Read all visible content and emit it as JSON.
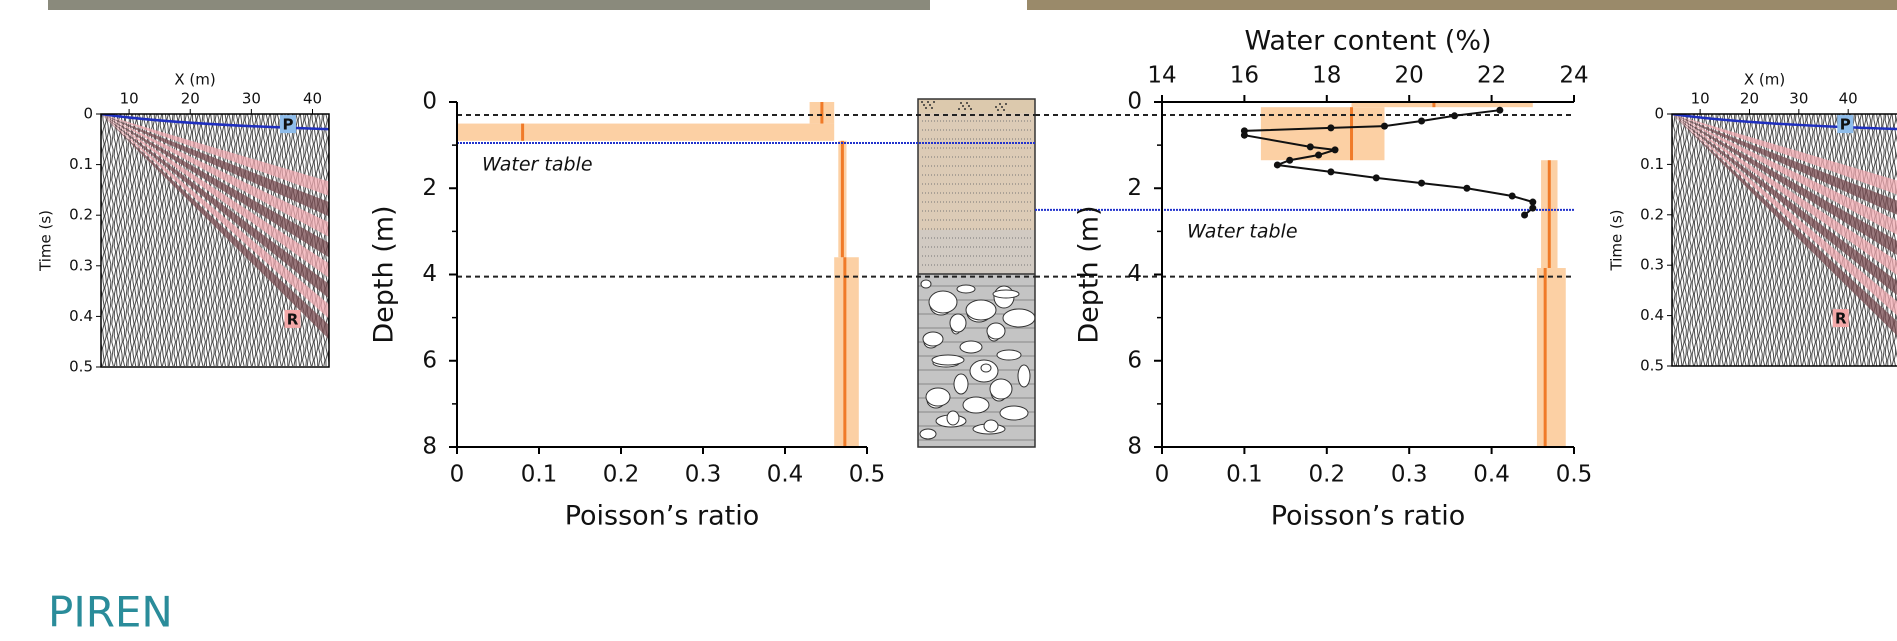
{
  "chart_data": [
    {
      "type": "seismogram",
      "xlabel": "X (m)",
      "ylabel": "Time (s)",
      "xlim": [
        5.4,
        42.7
      ],
      "xticks": [
        10,
        20,
        30,
        40
      ],
      "ylim": [
        0,
        0.5
      ],
      "yticks": [
        0,
        0.1,
        0.2,
        0.3,
        0.4,
        0.5
      ],
      "annotations": [
        "P",
        "R"
      ]
    },
    {
      "type": "profile",
      "xlabel": "Poisson’s ratio",
      "ylabel": "Depth (m)",
      "xlim": [
        0,
        0.5
      ],
      "xticks": [
        0,
        0.1,
        0.2,
        0.3,
        0.4,
        0.5
      ],
      "ylim": [
        0,
        8
      ],
      "yticks": [
        0,
        2,
        4,
        6,
        8
      ],
      "yminorticks": [
        1,
        3,
        5,
        7
      ],
      "boundaries": [
        0.3,
        4.05
      ],
      "water_table": {
        "label": "Water table",
        "depth": 0.95,
        "color": "#2233cc"
      },
      "line_color": "#f07a28",
      "band_color": "#fcd0a4",
      "layers": [
        {
          "top": 0,
          "bottom": 0.5,
          "value": 0.445,
          "min": 0.43,
          "max": 0.46
        },
        {
          "top": 0.5,
          "bottom": 0.9,
          "value": 0.08,
          "min": 0,
          "max": 0.46
        },
        {
          "top": 0.9,
          "bottom": 3.6,
          "value": 0.47,
          "min": 0.465,
          "max": 0.475
        },
        {
          "top": 3.6,
          "bottom": 8,
          "value": 0.473,
          "min": 0.46,
          "max": 0.49
        }
      ]
    },
    {
      "type": "profile",
      "xlabel": "Poisson’s ratio",
      "ylabel": "Depth (m)",
      "xlim": [
        0,
        0.5
      ],
      "xticks": [
        0,
        0.1,
        0.2,
        0.3,
        0.4,
        0.5
      ],
      "ylim": [
        0,
        8
      ],
      "yticks": [
        0,
        2,
        4,
        6,
        8
      ],
      "yminorticks": [
        1,
        3,
        5,
        7
      ],
      "x2label": "Water content (%)",
      "x2lim": [
        14,
        24
      ],
      "x2ticks": [
        14,
        16,
        18,
        20,
        22,
        24
      ],
      "boundaries": [
        0.3,
        4.05
      ],
      "water_table": {
        "label": "Water table",
        "depth": 2.5,
        "color": "#2233cc"
      },
      "line_color": "#f07a28",
      "band_color": "#fcd0a4",
      "layers": [
        {
          "top": 0,
          "bottom": 0.12,
          "value": 0.33,
          "min": 0.23,
          "max": 0.45
        },
        {
          "top": 0.12,
          "bottom": 1.35,
          "value": 0.23,
          "min": 0.12,
          "max": 0.27
        },
        {
          "top": 1.35,
          "bottom": 3.85,
          "value": 0.47,
          "min": 0.46,
          "max": 0.48
        },
        {
          "top": 3.85,
          "bottom": 8,
          "value": 0.465,
          "min": 0.455,
          "max": 0.49
        }
      ],
      "water_content": {
        "color": "#111111",
        "depth": [
          0.19,
          0.32,
          0.44,
          0.56,
          0.6,
          0.67,
          0.77,
          1.04,
          1.11,
          1.23,
          1.35,
          1.46,
          1.62,
          1.76,
          1.88,
          2.0,
          2.18,
          2.32,
          2.46,
          2.62
        ],
        "values": [
          22.2,
          21.1,
          20.3,
          19.4,
          18.1,
          16.0,
          16.0,
          17.6,
          18.2,
          17.8,
          17.1,
          16.8,
          18.1,
          19.2,
          20.3,
          21.4,
          22.5,
          23.0,
          23.0,
          22.8
        ]
      }
    },
    {
      "type": "seismogram",
      "xlabel": "X (m)",
      "ylabel": "Time (s)",
      "xlim": [
        4.3,
        50.5
      ],
      "xticks": [
        10,
        20,
        30,
        40
      ],
      "ylim": [
        0,
        0.5
      ],
      "yticks": [
        0,
        0.1,
        0.2,
        0.3,
        0.4,
        0.5
      ],
      "annotations": [
        "P",
        "R"
      ]
    }
  ],
  "logo": "PIREN"
}
